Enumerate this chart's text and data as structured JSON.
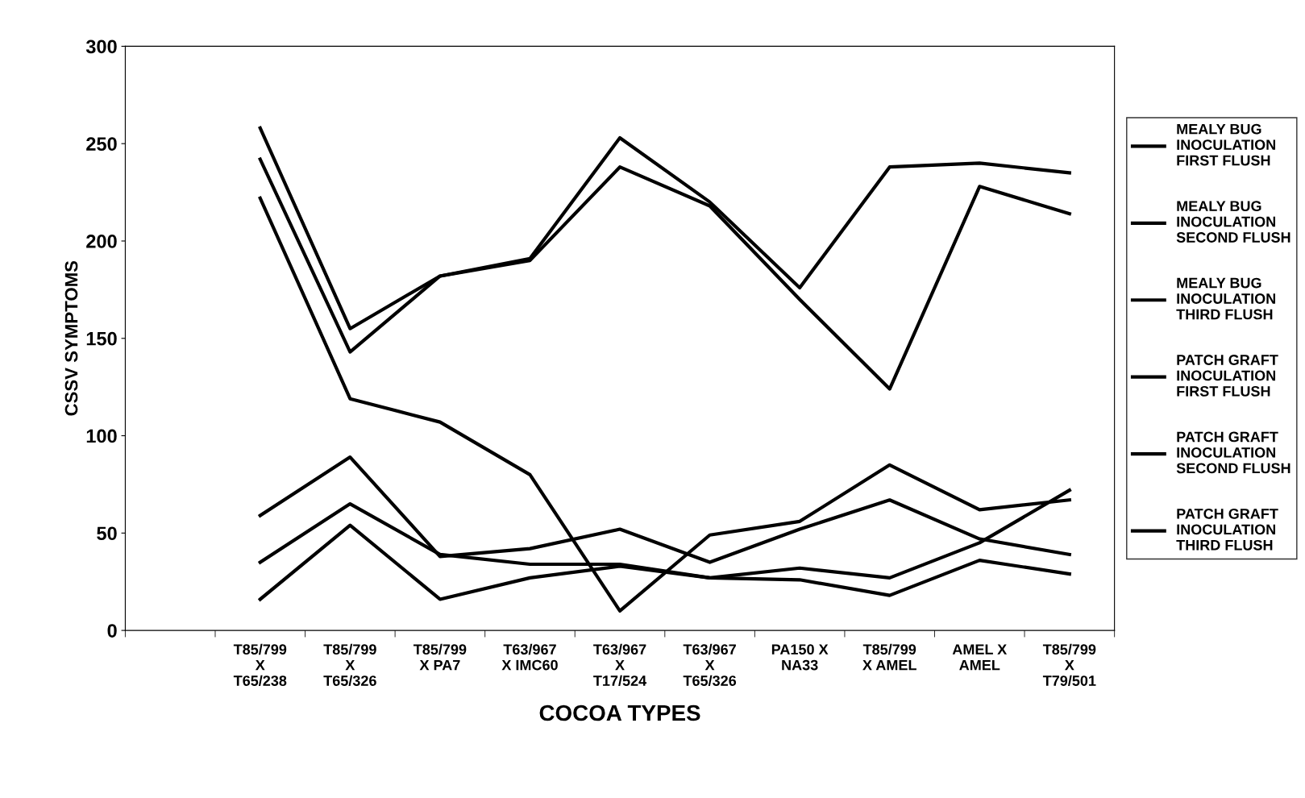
{
  "chart_data": {
    "type": "line",
    "xlabel": "COCOA TYPES",
    "ylabel": "CSSV SYMPTOMS",
    "categories": [
      null,
      "T85/799 X T65/238",
      "T85/799 X T65/326",
      "T85/799 X PA7",
      "T63/967 X IMC60",
      "T63/967 X T17/524",
      "T63/967 X T65/326",
      "PA150 X NA33",
      "T85/799 X AMEL",
      "AMEL X AMEL",
      "T85/799 X T79/501"
    ],
    "series": [
      {
        "name": "MEALY BUG INOCULATION FIRST FLUSH",
        "color": "#000000",
        "values": [
          null,
          242,
          143,
          182,
          190,
          238,
          218,
          170,
          124,
          228,
          214
        ]
      },
      {
        "name": "MEALY BUG INOCULATION SECOND FLUSH",
        "color": "#000000",
        "values": [
          null,
          258,
          155,
          182,
          191,
          253,
          220,
          176,
          238,
          240,
          235
        ]
      },
      {
        "name": "MEALY BUG INOCULATION THIRD FLUSH",
        "color": "#000000",
        "values": [
          null,
          222,
          119,
          107,
          80,
          10,
          49,
          56,
          85,
          62,
          67
        ]
      },
      {
        "name": "PATCH GRAFT INOCULATION FIRST FLUSH",
        "color": "#000000",
        "values": [
          null,
          59,
          89,
          38,
          42,
          52,
          35,
          52,
          67,
          47,
          39
        ]
      },
      {
        "name": "PATCH GRAFT INOCULATION SECOND FLUSH",
        "color": "#000000",
        "values": [
          null,
          35,
          65,
          39,
          34,
          34,
          27,
          32,
          27,
          45,
          72
        ]
      },
      {
        "name": "PATCH GRAFT INOCULATION THIRD FLUSH",
        "color": "#000000",
        "values": [
          null,
          16,
          54,
          16,
          27,
          33,
          27,
          26,
          18,
          36,
          29
        ]
      }
    ],
    "ylim": [
      0,
      300
    ],
    "yticks": [
      0,
      50,
      100,
      150,
      200,
      250,
      300
    ],
    "grid": false,
    "legend": "right",
    "marker": "none",
    "line_style": "solid"
  }
}
